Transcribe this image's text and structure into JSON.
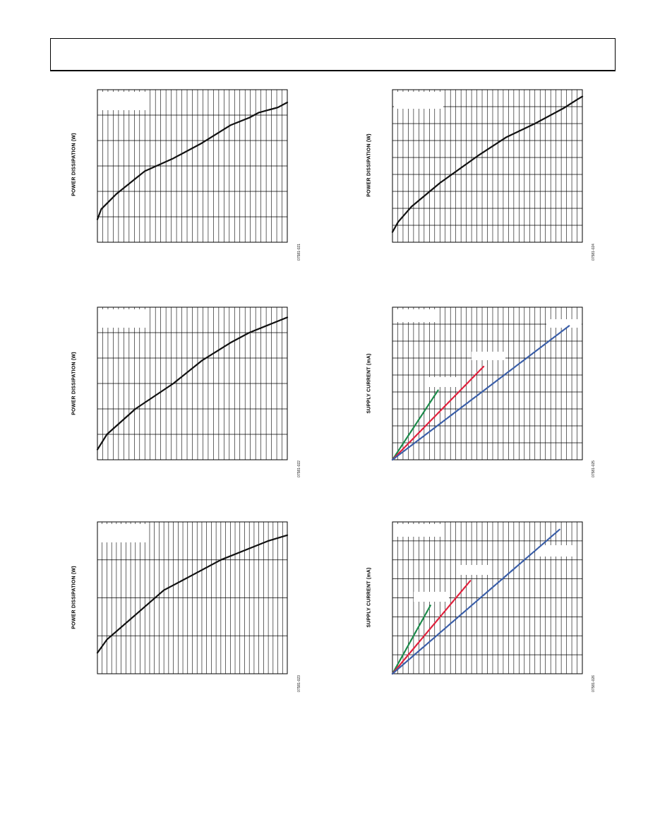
{
  "header": {
    "title": ""
  },
  "charts": [
    {
      "id": "c1",
      "ylabel": "POWER DISSIPATION (W)",
      "fig_id": "07581-021"
    },
    {
      "id": "c2",
      "ylabel": "POWER DISSIPATION (W)",
      "fig_id": "07581-024"
    },
    {
      "id": "c3",
      "ylabel": "POWER DISSIPATION (W)",
      "fig_id": "07581-022"
    },
    {
      "id": "c4",
      "ylabel": "SUPPLY CURRENT (mA)",
      "fig_id": "07581-025"
    },
    {
      "id": "c5",
      "ylabel": "POWER DISSIPATION (W)",
      "fig_id": "07581-023"
    },
    {
      "id": "c6",
      "ylabel": "SUPPLY CURRENT (mA)",
      "fig_id": "07581-026"
    }
  ],
  "colors": {
    "green": "#1a8a4a",
    "red": "#e0203c",
    "blue": "#3a5ea8",
    "curve": "#111111"
  },
  "chart_data": [
    {
      "type": "line",
      "title": "",
      "xlabel": "",
      "ylabel": "POWER DISSIPATION (W)",
      "xlim": [
        0,
        1
      ],
      "ylim": [
        0,
        6
      ],
      "grid": true,
      "series": [
        {
          "name": "",
          "x": [
            0,
            0.02,
            0.1,
            0.2,
            0.25,
            0.4,
            0.55,
            0.7,
            0.8,
            0.85,
            0.95,
            1.0
          ],
          "y": [
            0.9,
            1.3,
            1.9,
            2.5,
            2.8,
            3.3,
            3.9,
            4.6,
            4.9,
            5.1,
            5.3,
            5.5
          ]
        }
      ]
    },
    {
      "type": "line",
      "title": "",
      "xlabel": "",
      "ylabel": "POWER DISSIPATION (W)",
      "xlim": [
        0,
        1
      ],
      "ylim": [
        0,
        9
      ],
      "grid": true,
      "series": [
        {
          "name": "",
          "x": [
            0,
            0.03,
            0.1,
            0.25,
            0.45,
            0.6,
            0.75,
            0.9,
            0.97,
            1.0
          ],
          "y": [
            0.6,
            1.2,
            2.1,
            3.5,
            5.1,
            6.2,
            7.0,
            7.9,
            8.4,
            8.6
          ]
        }
      ]
    },
    {
      "type": "line",
      "title": "",
      "xlabel": "",
      "ylabel": "POWER DISSIPATION (W)",
      "xlim": [
        0,
        1
      ],
      "ylim": [
        0,
        6
      ],
      "grid": true,
      "series": [
        {
          "name": "",
          "x": [
            0,
            0.05,
            0.2,
            0.4,
            0.55,
            0.7,
            0.8,
            0.9,
            1.0
          ],
          "y": [
            0.4,
            1.0,
            2.0,
            3.0,
            3.9,
            4.6,
            5.0,
            5.3,
            5.6
          ]
        }
      ]
    },
    {
      "type": "line",
      "title": "",
      "xlabel": "",
      "ylabel": "SUPPLY CURRENT (mA)",
      "xlim": [
        0,
        1
      ],
      "ylim": [
        0,
        9
      ],
      "grid": true,
      "series": [
        {
          "name": "",
          "color": "#1a8a4a",
          "x": [
            0,
            0.24
          ],
          "y": [
            0,
            4.1
          ]
        },
        {
          "name": "",
          "color": "#e0203c",
          "x": [
            0,
            0.48
          ],
          "y": [
            0,
            5.5
          ]
        },
        {
          "name": "",
          "color": "#3a5ea8",
          "x": [
            0,
            0.93
          ],
          "y": [
            0,
            7.9
          ]
        }
      ]
    },
    {
      "type": "line",
      "title": "",
      "xlabel": "",
      "ylabel": "POWER DISSIPATION (W)",
      "xlim": [
        0,
        1
      ],
      "ylim": [
        0,
        4
      ],
      "grid": true,
      "series": [
        {
          "name": "",
          "x": [
            0,
            0.05,
            0.2,
            0.35,
            0.5,
            0.65,
            0.8,
            0.9,
            1.0
          ],
          "y": [
            0.55,
            0.9,
            1.55,
            2.2,
            2.6,
            3.0,
            3.3,
            3.5,
            3.65
          ]
        }
      ]
    },
    {
      "type": "line",
      "title": "",
      "xlabel": "",
      "ylabel": "SUPPLY CURRENT (mA)",
      "xlim": [
        0,
        1
      ],
      "ylim": [
        0,
        8
      ],
      "grid": true,
      "series": [
        {
          "name": "",
          "color": "#1a8a4a",
          "x": [
            0,
            0.2
          ],
          "y": [
            0,
            3.6
          ]
        },
        {
          "name": "",
          "color": "#e0203c",
          "x": [
            0,
            0.41
          ],
          "y": [
            0,
            4.9
          ]
        },
        {
          "name": "",
          "color": "#3a5ea8",
          "x": [
            0,
            0.88
          ],
          "y": [
            0,
            7.6
          ]
        }
      ]
    }
  ]
}
